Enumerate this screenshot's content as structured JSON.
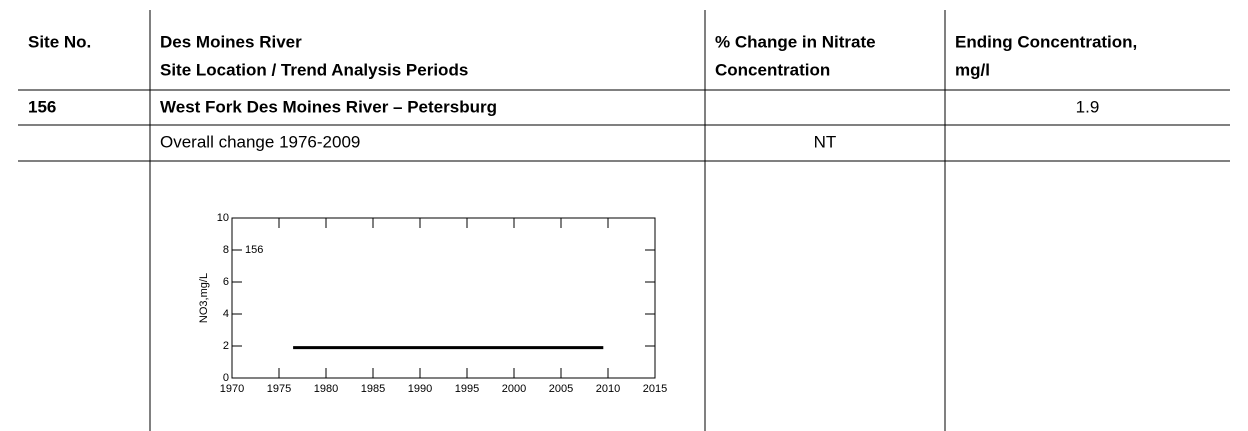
{
  "table": {
    "header": [
      [
        "Site No."
      ],
      [
        "Des Moines River",
        "Site Location / Trend Analysis Periods"
      ],
      [
        "% Change in Nitrate",
        "Concentration"
      ],
      [
        "Ending Concentration,",
        "mg/l"
      ]
    ],
    "rows": [
      [
        "156",
        "West Fork Des Moines River – Petersburg",
        null,
        "1.9"
      ],
      [
        null,
        "Overall change 1976-2009",
        "NT",
        null
      ]
    ]
  },
  "chart_data": {
    "type": "line",
    "ylabel": "NO3,mg/L",
    "annotation": "156",
    "x": [
      1976.5,
      2009.5
    ],
    "values": [
      1.9,
      1.9
    ],
    "color": "#000000",
    "xlim": [
      1970,
      2015
    ],
    "xticks": [
      1970,
      1975,
      1980,
      1985,
      1990,
      1995,
      2000,
      2005,
      2010,
      2015
    ],
    "ylim": [
      0,
      10
    ],
    "yticks": [
      0,
      2,
      4,
      6,
      8,
      10
    ]
  }
}
